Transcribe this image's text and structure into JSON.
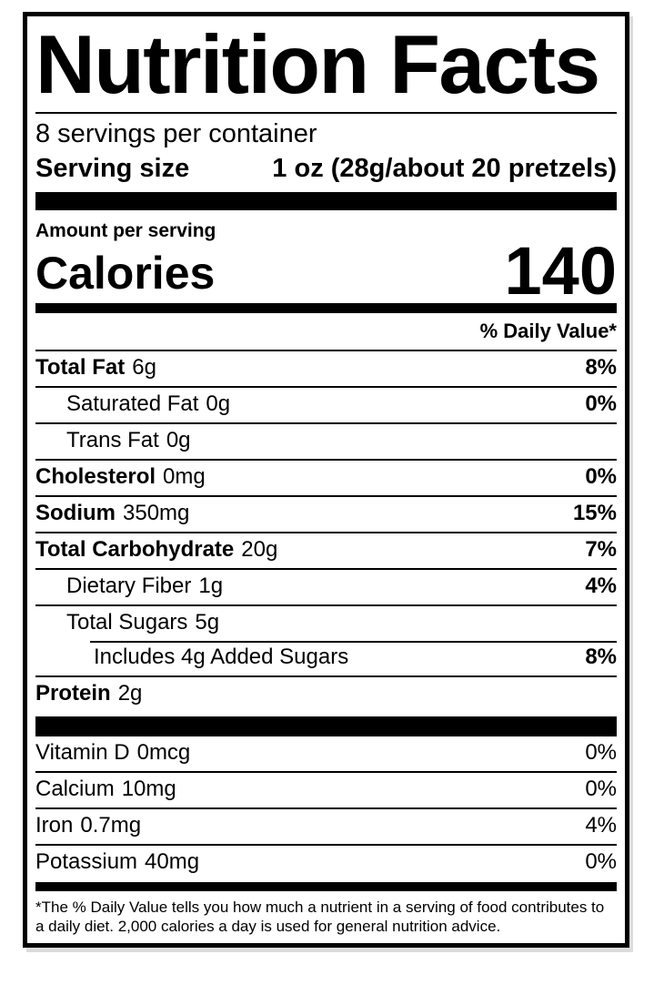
{
  "label": {
    "title": "Nutrition Facts",
    "servings_per_container": "8 servings per container",
    "serving_size_label": "Serving size",
    "serving_size_value": "1 oz (28g/about 20 pretzels)",
    "amount_per_serving": "Amount per serving",
    "calories_label": "Calories",
    "calories_value": "140",
    "daily_value_header": "% Daily Value*",
    "nutrients": [
      {
        "name": "Total Fat",
        "amount": "6g",
        "dv": "8%"
      },
      {
        "name": "Saturated Fat",
        "amount": "0g",
        "dv": "0%"
      },
      {
        "name": "Trans Fat",
        "amount": "0g",
        "dv": ""
      },
      {
        "name": "Cholesterol",
        "amount": "0mg",
        "dv": "0%"
      },
      {
        "name": "Sodium",
        "amount": "350mg",
        "dv": "15%"
      },
      {
        "name": "Total Carbohydrate",
        "amount": "20g",
        "dv": "7%"
      },
      {
        "name": "Dietary Fiber",
        "amount": "1g",
        "dv": "4%"
      },
      {
        "name": "Total Sugars",
        "amount": "5g",
        "dv": ""
      },
      {
        "name": "Includes 4g Added Sugars",
        "amount": "",
        "dv": "8%"
      },
      {
        "name": "Protein",
        "amount": "2g",
        "dv": ""
      }
    ],
    "micronutrients": [
      {
        "name": "Vitamin D",
        "amount": "0mcg",
        "dv": "0%"
      },
      {
        "name": "Calcium",
        "amount": "10mg",
        "dv": "0%"
      },
      {
        "name": "Iron",
        "amount": "0.7mg",
        "dv": "4%"
      },
      {
        "name": "Potassium",
        "amount": "40mg",
        "dv": "0%"
      }
    ],
    "footnote": "*The % Daily Value tells you how much a nutrient in a serving of food contributes to a daily diet. 2,000 calories a day is used for general nutrition advice.",
    "colors": {
      "ink": "#000000",
      "paper": "#ffffff"
    }
  }
}
